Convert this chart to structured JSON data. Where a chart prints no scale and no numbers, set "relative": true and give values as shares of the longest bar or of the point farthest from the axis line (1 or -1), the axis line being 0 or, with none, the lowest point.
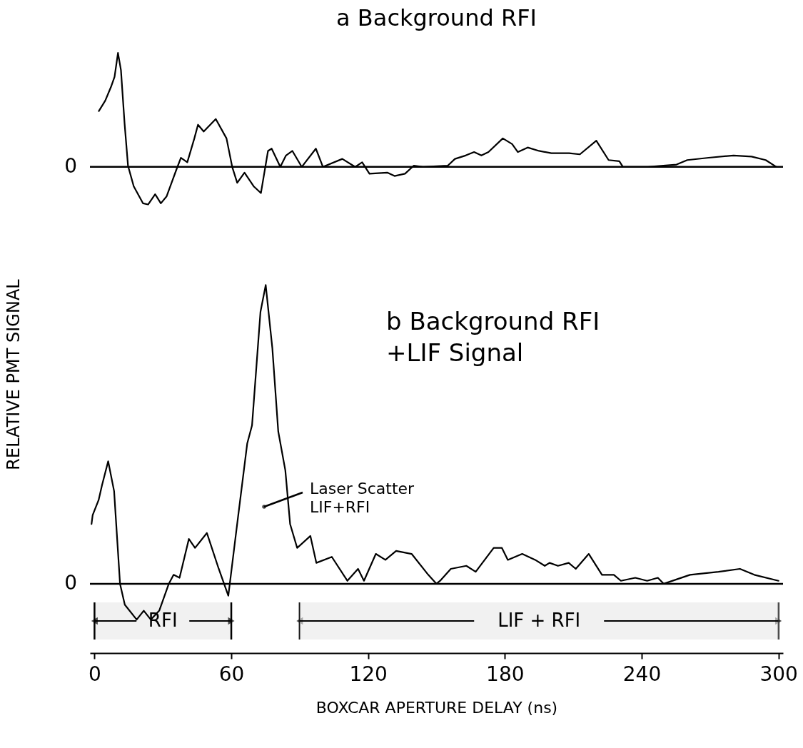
{
  "chart_data": [
    {
      "type": "line",
      "title": "a Background RFI",
      "xlim": [
        -2,
        302
      ],
      "tick_labels": false,
      "relative": true,
      "x": [
        1.9,
        4.7,
        7.2,
        8.8,
        10.3,
        11.6,
        13.2,
        14.7,
        17.2,
        21.3,
        23.5,
        26.6,
        29.1,
        31.6,
        36.0,
        37.9,
        40.7,
        43.8,
        45.4,
        47.9,
        53.2,
        57.9,
        60.4,
        62.6,
        65.8,
        69.8,
        73.0,
        76.1,
        77.7,
        81.5,
        84.0,
        86.8,
        90.9,
        97.1,
        100.2,
        108.7,
        114.3,
        117.4,
        120.6,
        128.4,
        131.6,
        136.2,
        140.0,
        144.1,
        154.9,
        158.1,
        162.8,
        166.5,
        169.7,
        172.8,
        179.1,
        183.2,
        185.7,
        190.0,
        195.0,
        200.4,
        208.2,
        212.9,
        220.1,
        225.5,
        230.2,
        231.8,
        242.7,
        255.3,
        260.0,
        269.4,
        280.3,
        288.2,
        294.4,
        299.1
      ],
      "series": [
        {
          "color": "#000000",
          "values": [
            0.49,
            0.58,
            0.7,
            0.79,
            1.0,
            0.85,
            0.38,
            0.01,
            -0.17,
            -0.32,
            -0.33,
            -0.24,
            -0.32,
            -0.26,
            -0.02,
            0.08,
            0.04,
            0.25,
            0.37,
            0.31,
            0.42,
            0.25,
            0.0,
            -0.14,
            -0.05,
            -0.17,
            -0.23,
            0.14,
            0.16,
            0.0,
            0.1,
            0.14,
            0.0,
            0.16,
            0.0,
            0.07,
            0.0,
            0.04,
            -0.06,
            -0.05,
            -0.08,
            -0.06,
            0.01,
            0.0,
            0.01,
            0.07,
            0.1,
            0.13,
            0.1,
            0.13,
            0.25,
            0.2,
            0.13,
            0.17,
            0.14,
            0.12,
            0.12,
            0.11,
            0.23,
            0.06,
            0.05,
            0.0,
            0.0,
            0.02,
            0.06,
            0.08,
            0.1,
            0.09,
            0.06,
            0.0
          ]
        }
      ],
      "ref_lines": [
        {
          "axis": "y",
          "value": 0,
          "label": "0"
        }
      ]
    },
    {
      "type": "line",
      "title": "b Background RFI\n+LIF Signal",
      "xlabel": "BOXCAR APERTURE DELAY (ns)",
      "ylabel": "RELATIVE PMT SIGNAL",
      "xlim": [
        -2,
        302
      ],
      "xticks": [
        0,
        60,
        120,
        180,
        240,
        300
      ],
      "tick_labels": "x",
      "relative": true,
      "x": [
        -1.3,
        -0.8,
        1.8,
        3.3,
        6.0,
        8.6,
        11.2,
        13.3,
        18.5,
        21.6,
        24.7,
        28.4,
        32.6,
        34.7,
        37.3,
        41.4,
        44.1,
        49.3,
        54.5,
        58.7,
        62.9,
        67.0,
        69.1,
        72.8,
        75.1,
        78.0,
        80.6,
        83.7,
        85.8,
        88.9,
        94.7,
        97.3,
        104.1,
        110.9,
        115.6,
        118.2,
        123.4,
        127.6,
        132.3,
        139.1,
        146.4,
        150.0,
        151.6,
        156.3,
        163.1,
        167.2,
        175.1,
        178.7,
        181.3,
        187.6,
        193.3,
        197.5,
        199.6,
        203.3,
        208.0,
        211.1,
        216.8,
        222.6,
        227.8,
        230.9,
        237.2,
        242.4,
        247.1,
        249.7,
        261.2,
        273.7,
        283.1,
        289.4,
        300.0
      ],
      "series": [
        {
          "color": "#000000",
          "values": [
            0.2,
            0.23,
            0.28,
            0.33,
            0.41,
            0.31,
            0.0,
            -0.07,
            -0.12,
            -0.09,
            -0.12,
            -0.09,
            0.0,
            0.03,
            0.02,
            0.15,
            0.12,
            0.17,
            0.05,
            -0.04,
            0.22,
            0.47,
            0.53,
            0.91,
            1.0,
            0.79,
            0.51,
            0.38,
            0.2,
            0.12,
            0.16,
            0.07,
            0.09,
            0.01,
            0.05,
            0.01,
            0.1,
            0.08,
            0.11,
            0.1,
            0.03,
            0.0,
            0.01,
            0.05,
            0.06,
            0.04,
            0.12,
            0.12,
            0.08,
            0.1,
            0.08,
            0.06,
            0.07,
            0.06,
            0.07,
            0.05,
            0.1,
            0.03,
            0.03,
            0.01,
            0.02,
            0.01,
            0.02,
            0.0,
            0.03,
            0.04,
            0.05,
            0.03,
            0.01
          ]
        }
      ],
      "ref_lines": [
        {
          "axis": "y",
          "value": 0,
          "label": "0"
        }
      ],
      "bands": [
        {
          "axis": "x",
          "from": 0,
          "to": 60,
          "label": "RFI"
        },
        {
          "axis": "x",
          "from": 90,
          "to": 300,
          "label": "LIF + RFI"
        }
      ],
      "annotations": [
        "Laser Scatter\nLIF+RFI"
      ]
    }
  ]
}
